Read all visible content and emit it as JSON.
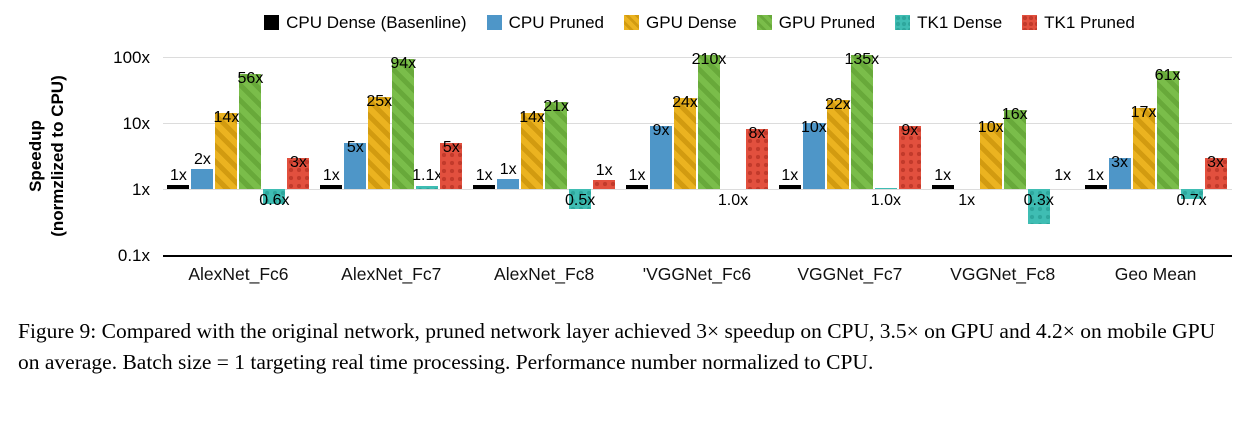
{
  "figure": {
    "caption": "Figure 9: Compared with the original network, pruned network layer achieved 3× speedup on CPU, 3.5× on GPU and 4.2× on mobile GPU on average. Batch size = 1 targeting real time processing. Performance number normalized to CPU."
  },
  "chart_data": {
    "type": "bar",
    "scale": "log10",
    "ylabel_line1": "Speedup",
    "ylabel_line2": "(normzlized to CPU)",
    "ylim": [
      0.1,
      100
    ],
    "grid": "horizontal",
    "legend_position": "top",
    "y_ticks": [
      {
        "label": "100x",
        "value": 100
      },
      {
        "label": "10x",
        "value": 10
      },
      {
        "label": "1x",
        "value": 1
      },
      {
        "label": "0.1x",
        "value": 0.1
      }
    ],
    "categories": [
      "AlexNet_Fc6",
      "AlexNet_Fc7",
      "AlexNet_Fc8",
      "'VGGNet_Fc6",
      "VGGNet_Fc7",
      "VGGNet_Fc8",
      "Geo Mean"
    ],
    "series": [
      {
        "name": "CPU Dense (Basenline)",
        "color": "#000000",
        "pattern": "solid"
      },
      {
        "name": "CPU Pruned",
        "color": "#4E96C8",
        "pattern": "solid"
      },
      {
        "name": "GPU Dense",
        "color": "#EBB320",
        "pattern": "stripes",
        "pattern_color": "#D29B10"
      },
      {
        "name": "GPU Pruned",
        "color": "#7ABD4A",
        "pattern": "stripes",
        "pattern_color": "#68A93A"
      },
      {
        "name": "TK1 Dense",
        "color": "#3FBDB3",
        "pattern": "dots",
        "pattern_color": "#2EA79D"
      },
      {
        "name": "TK1 Pruned",
        "color": "#E2503E",
        "pattern": "dots",
        "pattern_color": "#C23A2B"
      }
    ],
    "groups": [
      {
        "category": "AlexNet_Fc6",
        "bars": [
          {
            "value": 1,
            "label": "1x",
            "label_pos": "base"
          },
          {
            "value": 2,
            "label": "2x",
            "label_pos": "top"
          },
          {
            "value": 14,
            "label": "14x",
            "label_pos": "top"
          },
          {
            "value": 56,
            "label": "56x",
            "label_pos": "top"
          },
          {
            "value": 0.6,
            "label": "0.6x",
            "label_pos": "below"
          },
          {
            "value": 3,
            "label": "3x",
            "label_pos": "top"
          }
        ]
      },
      {
        "category": "AlexNet_Fc7",
        "bars": [
          {
            "value": 1,
            "label": "1x",
            "label_pos": "base"
          },
          {
            "value": 5,
            "label": "5x",
            "label_pos": "top"
          },
          {
            "value": 25,
            "label": "25x",
            "label_pos": "top"
          },
          {
            "value": 94,
            "label": "94x",
            "label_pos": "top"
          },
          {
            "value": 1.1,
            "label": "1.1x",
            "label_pos": "base"
          },
          {
            "value": 5,
            "label": "5x",
            "label_pos": "top"
          }
        ]
      },
      {
        "category": "AlexNet_Fc8",
        "bars": [
          {
            "value": 1,
            "label": "1x",
            "label_pos": "base"
          },
          {
            "value": 1.4,
            "label": "1x",
            "label_pos": "top"
          },
          {
            "value": 14,
            "label": "14x",
            "label_pos": "top"
          },
          {
            "value": 21,
            "label": "21x",
            "label_pos": "top"
          },
          {
            "value": 0.5,
            "label": "0.5x",
            "label_pos": "below"
          },
          {
            "value": 1.35,
            "label": "1x",
            "label_pos": "top"
          }
        ]
      },
      {
        "category": "'VGGNet_Fc6",
        "bars": [
          {
            "value": 1,
            "label": "1x",
            "label_pos": "base"
          },
          {
            "value": 9,
            "label": "9x",
            "label_pos": "top"
          },
          {
            "value": 24,
            "label": "24x",
            "label_pos": "top"
          },
          {
            "value": 210,
            "label": "210x",
            "label_pos": "top"
          },
          {
            "value": 1.0,
            "label": "1.0x",
            "label_pos": "below"
          },
          {
            "value": 8,
            "label": "8x",
            "label_pos": "top"
          }
        ]
      },
      {
        "category": "VGGNet_Fc7",
        "bars": [
          {
            "value": 1,
            "label": "1x",
            "label_pos": "base"
          },
          {
            "value": 10,
            "label": "10x",
            "label_pos": "top"
          },
          {
            "value": 22,
            "label": "22x",
            "label_pos": "top"
          },
          {
            "value": 135,
            "label": "135x",
            "label_pos": "top"
          },
          {
            "value": 1.05,
            "label": "1.0x",
            "label_pos": "below"
          },
          {
            "value": 9,
            "label": "9x",
            "label_pos": "top"
          }
        ]
      },
      {
        "category": "VGGNet_Fc8",
        "bars": [
          {
            "value": 1,
            "label": "1x",
            "label_pos": "base"
          },
          {
            "value": 1.0,
            "label": "1x",
            "label_pos": "below"
          },
          {
            "value": 10,
            "label": "10x",
            "label_pos": "top"
          },
          {
            "value": 16,
            "label": "16x",
            "label_pos": "top"
          },
          {
            "value": 0.3,
            "label": "0.3x",
            "label_pos": "below"
          },
          {
            "value": 1.0,
            "label": "1x",
            "label_pos": "base"
          }
        ]
      },
      {
        "category": "Geo Mean",
        "bars": [
          {
            "value": 1,
            "label": "1x",
            "label_pos": "base"
          },
          {
            "value": 3,
            "label": "3x",
            "label_pos": "top"
          },
          {
            "value": 17,
            "label": "17x",
            "label_pos": "top"
          },
          {
            "value": 61,
            "label": "61x",
            "label_pos": "top"
          },
          {
            "value": 0.7,
            "label": "0.7x",
            "label_pos": "below"
          },
          {
            "value": 3,
            "label": "3x",
            "label_pos": "top"
          }
        ]
      }
    ]
  }
}
